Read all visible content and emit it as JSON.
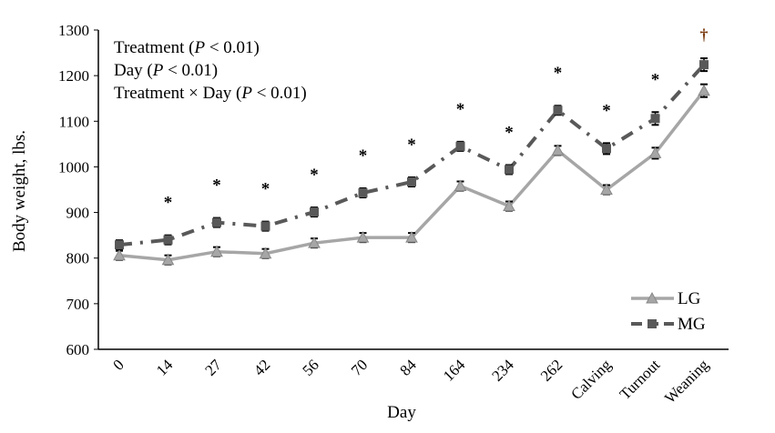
{
  "chart_data": {
    "type": "line",
    "title": "",
    "xlabel": "Day",
    "ylabel": "Body weight, lbs.",
    "ylim": [
      600,
      1300
    ],
    "yticks": [
      600,
      700,
      800,
      900,
      1000,
      1100,
      1200,
      1300
    ],
    "categories": [
      "0",
      "14",
      "27",
      "42",
      "56",
      "70",
      "84",
      "164",
      "234",
      "262",
      "Calving",
      "Turnout",
      "Weaning"
    ],
    "series": [
      {
        "name": "LG",
        "color": "#a6a6a6",
        "style": "solid",
        "marker": "triangle",
        "values": [
          806,
          796,
          814,
          810,
          833,
          845,
          845,
          958,
          914,
          1036,
          950,
          1030,
          1167
        ],
        "error": [
          10,
          10,
          10,
          10,
          10,
          10,
          10,
          10,
          10,
          10,
          10,
          12,
          14
        ]
      },
      {
        "name": "MG",
        "color": "#595959",
        "style": "dash-dot",
        "marker": "square",
        "values": [
          829,
          840,
          878,
          870,
          901,
          943,
          967,
          1045,
          994,
          1124,
          1040,
          1106,
          1224
        ],
        "error": [
          10,
          10,
          10,
          10,
          10,
          10,
          10,
          10,
          10,
          10,
          12,
          14,
          14
        ]
      }
    ],
    "significance": [
      "",
      "*",
      "*",
      "*",
      "*",
      "*",
      "*",
      "*",
      "*",
      "*",
      "*",
      "*",
      "†"
    ],
    "annotations": [
      {
        "parts": [
          {
            "t": "Treatment ("
          },
          {
            "t": "P",
            "i": true
          },
          {
            "t": " < 0.01)"
          }
        ]
      },
      {
        "parts": [
          {
            "t": "Day ("
          },
          {
            "t": "P",
            "i": true
          },
          {
            "t": " < 0.01)"
          }
        ]
      },
      {
        "parts": [
          {
            "t": "Treatment × Day ("
          },
          {
            "t": "P",
            "i": true
          },
          {
            "t": " < 0.01)"
          }
        ]
      }
    ],
    "legend": "bottom-right",
    "grid": false
  }
}
